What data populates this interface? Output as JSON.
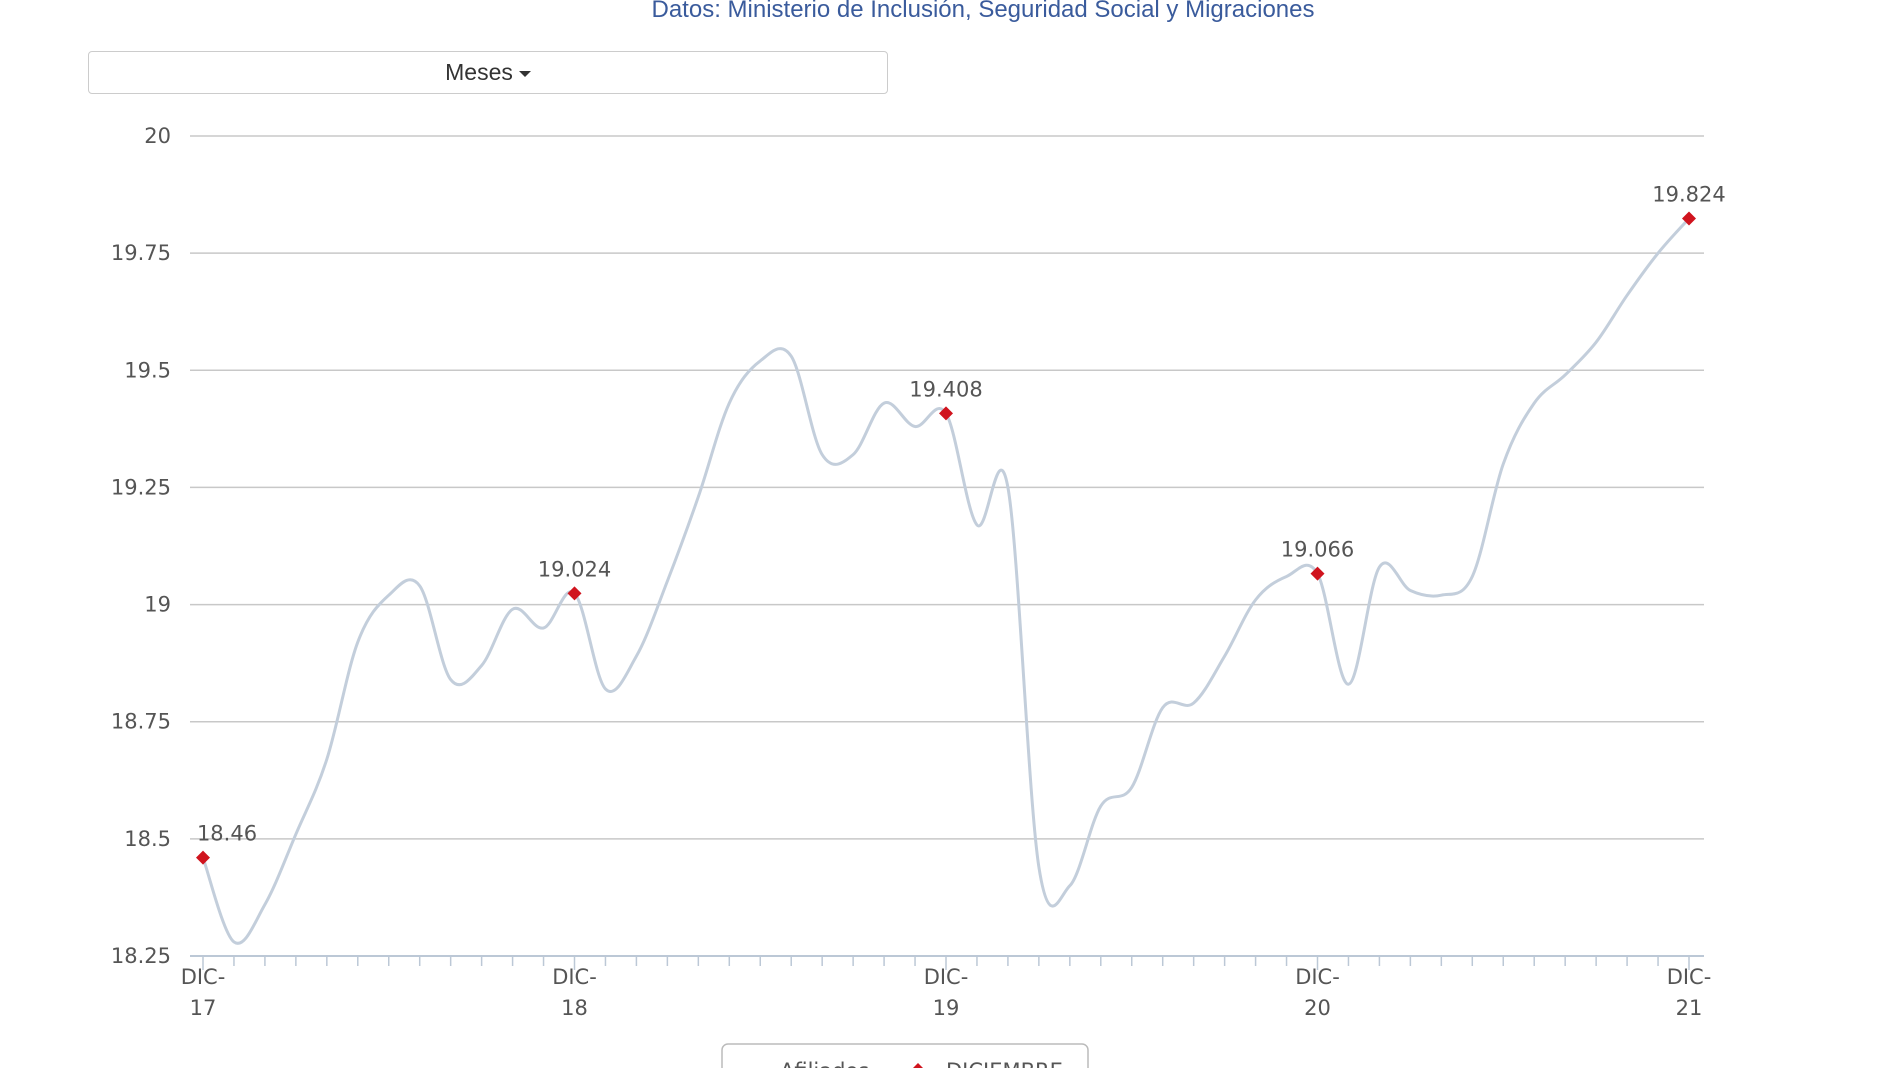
{
  "ui": {
    "dropdown": "Meses"
  },
  "chart_data": {
    "type": "line",
    "subtitle": "Datos: Ministerio de Inclusión, Seguridad Social y Migraciones",
    "categories": [
      "DIC-17",
      null,
      null,
      null,
      null,
      null,
      null,
      null,
      null,
      null,
      null,
      null,
      "DIC-18",
      null,
      null,
      null,
      null,
      null,
      null,
      null,
      null,
      null,
      null,
      null,
      "DIC-19",
      null,
      null,
      null,
      null,
      null,
      null,
      null,
      null,
      null,
      null,
      null,
      "DIC-20",
      null,
      null,
      null,
      null,
      null,
      null,
      null,
      null,
      null,
      null,
      null,
      "DIC-21"
    ],
    "series": [
      {
        "name": "Afiliados",
        "color": "#c3cedb",
        "values": [
          18.46,
          18.28,
          18.36,
          18.51,
          18.67,
          18.92,
          19.02,
          19.04,
          18.84,
          18.87,
          18.99,
          18.95,
          19.024,
          18.82,
          18.89,
          19.05,
          19.23,
          19.43,
          19.52,
          19.53,
          19.32,
          19.32,
          19.43,
          19.38,
          19.408,
          19.17,
          19.25,
          18.44,
          18.4,
          18.57,
          18.61,
          18.78,
          18.79,
          18.89,
          19.01,
          19.06,
          19.066,
          18.83,
          19.08,
          19.03,
          19.02,
          19.06,
          19.3,
          19.43,
          19.49,
          19.56,
          19.66,
          19.75,
          19.824
        ]
      },
      {
        "name": "DICIEMBRE",
        "color": "#d0141e",
        "values": [
          18.46,
          null,
          null,
          null,
          null,
          null,
          null,
          null,
          null,
          null,
          null,
          null,
          19.024,
          null,
          null,
          null,
          null,
          null,
          null,
          null,
          null,
          null,
          null,
          null,
          19.408,
          null,
          null,
          null,
          null,
          null,
          null,
          null,
          null,
          null,
          null,
          null,
          19.066,
          null,
          null,
          null,
          null,
          null,
          null,
          null,
          null,
          null,
          null,
          null,
          19.824
        ]
      }
    ],
    "ylim": [
      18.25,
      20
    ],
    "yticks": [
      18.25,
      18.5,
      18.75,
      19,
      19.25,
      19.5,
      19.75,
      20
    ],
    "grid": true
  }
}
